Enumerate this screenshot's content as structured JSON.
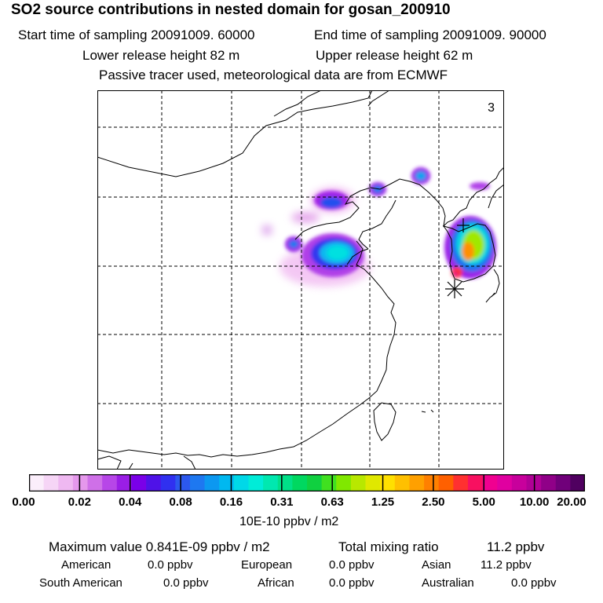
{
  "header": {
    "title": "SO2 source contributions in nested domain for gosan_200910",
    "start_label": "Start time of sampling 20091009. 60000",
    "end_label": "End time of sampling 20091009. 90000",
    "lower_label": "Lower release height   82 m",
    "upper_label": "Upper release height   62 m",
    "tracer_note": "Passive tracer used, meteorological data are from ECMWF"
  },
  "map": {
    "panel_number": "3",
    "receptor_marker": "asterisk-icon"
  },
  "colorbar": {
    "colors": [
      "#fbeefb",
      "#f6d5f6",
      "#efb8f1",
      "#e598ec",
      "#cf70e8",
      "#b746e8",
      "#9a1ee6",
      "#7a00e8",
      "#4f12e8",
      "#3030f0",
      "#2c58ee",
      "#1e78f0",
      "#0c98f0",
      "#00b8f0",
      "#00d8e8",
      "#00ecd8",
      "#00e8b0",
      "#00e088",
      "#00d860",
      "#10d040",
      "#40e020",
      "#80e800",
      "#b8e800",
      "#e0e800",
      "#ffe000",
      "#ffc000",
      "#ffa000",
      "#ff8000",
      "#ff6000",
      "#ff3030",
      "#f81060",
      "#f00090",
      "#e000a0",
      "#c8009c",
      "#b00096",
      "#900088",
      "#70007a",
      "#500060"
    ],
    "tick_labels": [
      "0.00",
      "0.02",
      "0.04",
      "0.08",
      "0.16",
      "0.31",
      "0.63",
      "1.25",
      "2.50",
      "5.00",
      "10.00",
      "20.00"
    ],
    "unit": "10E-10 ppbv / m2"
  },
  "stats": {
    "maximum": "Maximum value  0.841E-09 ppbv / m2",
    "total": "Total mixing ratio",
    "total_value": "11.2 ppbv"
  },
  "regions": [
    {
      "label": "American",
      "value": "0.0 ppbv"
    },
    {
      "label": "European",
      "value": "0.0 ppbv"
    },
    {
      "label": "Asian",
      "value": "11.2 ppbv"
    },
    {
      "label": "South American",
      "value": "0.0 ppbv"
    },
    {
      "label": "African",
      "value": "0.0 ppbv"
    },
    {
      "label": "Australian",
      "value": "0.0 ppbv"
    }
  ]
}
